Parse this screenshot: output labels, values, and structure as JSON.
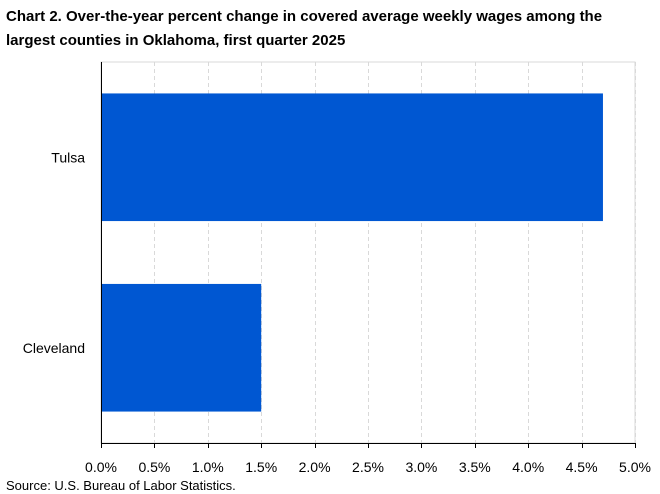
{
  "chart_title": "Chart 2. Over-the-year percent change in covered average weekly wages among the largest counties in Oklahoma, first quarter 2025",
  "source_note": "Source: U.S. Bureau of Labor Statistics.",
  "chart_data": {
    "type": "bar",
    "orientation": "horizontal",
    "title": "Chart 2. Over-the-year percent change in covered average weekly wages among the largest counties in Oklahoma, first quarter 2025",
    "categories": [
      "Tulsa",
      "Cleveland"
    ],
    "values": [
      4.7,
      1.5
    ],
    "unit": "percent",
    "xlim": [
      0,
      5
    ],
    "x_ticks": [
      "0.0%",
      "0.5%",
      "1.0%",
      "1.5%",
      "2.0%",
      "2.5%",
      "3.0%",
      "3.5%",
      "4.0%",
      "4.5%",
      "5.0%"
    ],
    "x_tick_values": [
      0,
      0.5,
      1,
      1.5,
      2,
      2.5,
      3,
      3.5,
      4,
      4.5,
      5
    ],
    "xlabel": "",
    "ylabel": "",
    "grid": "vertical dashed",
    "bar_color": "#0057D2",
    "legend": "none"
  }
}
